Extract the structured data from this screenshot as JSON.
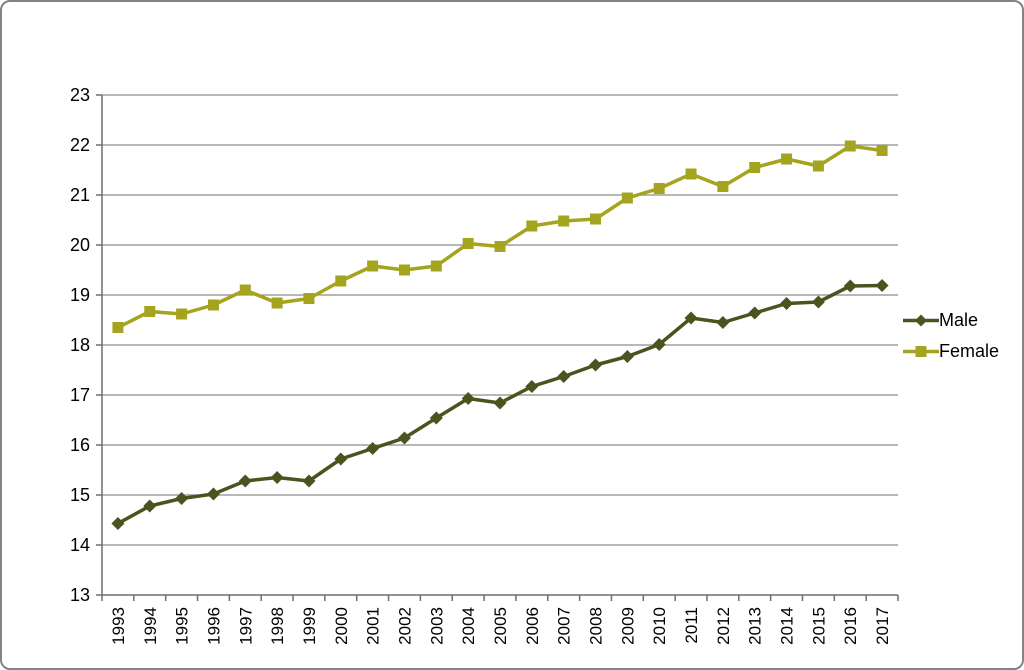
{
  "window": {
    "background": "#ffffff",
    "border_color": "#848484"
  },
  "chart_data": {
    "type": "line",
    "title": "",
    "xlabel": "",
    "ylabel": "",
    "categories": [
      "1993",
      "1994",
      "1995",
      "1996",
      "1997",
      "1998",
      "1999",
      "2000",
      "2001",
      "2002",
      "2003",
      "2004",
      "2005",
      "2006",
      "2007",
      "2008",
      "2009",
      "2010",
      "2011",
      "2012",
      "2013",
      "2014",
      "2015",
      "2016",
      "2017"
    ],
    "series": [
      {
        "name": "Male",
        "marker": "diamond",
        "color": "#4D531F",
        "values": [
          14.43,
          14.78,
          14.93,
          15.02,
          15.28,
          15.35,
          15.28,
          15.72,
          15.93,
          16.14,
          16.54,
          16.93,
          16.84,
          17.17,
          17.37,
          17.6,
          17.77,
          18.01,
          18.54,
          18.45,
          18.64,
          18.83,
          18.86,
          19.18,
          19.19
        ]
      },
      {
        "name": "Female",
        "marker": "square",
        "color": "#A5A41F",
        "values": [
          18.35,
          18.67,
          18.62,
          18.8,
          19.1,
          18.84,
          18.93,
          19.28,
          19.58,
          19.5,
          19.58,
          20.03,
          19.97,
          20.38,
          20.48,
          20.52,
          20.94,
          21.13,
          21.42,
          21.17,
          21.55,
          21.72,
          21.58,
          21.98,
          21.89
        ]
      }
    ],
    "ylim": [
      13,
      23
    ],
    "ytick_step": 1,
    "ytick_labels": [
      "13",
      "14",
      "15",
      "16",
      "17",
      "18",
      "19",
      "20",
      "21",
      "22",
      "23"
    ],
    "grid": "horizontal",
    "gridline_color": "#8C8C8C",
    "axis_color": "#6E6E6E",
    "tick_label_color": "#000000",
    "legend_position": "right"
  }
}
